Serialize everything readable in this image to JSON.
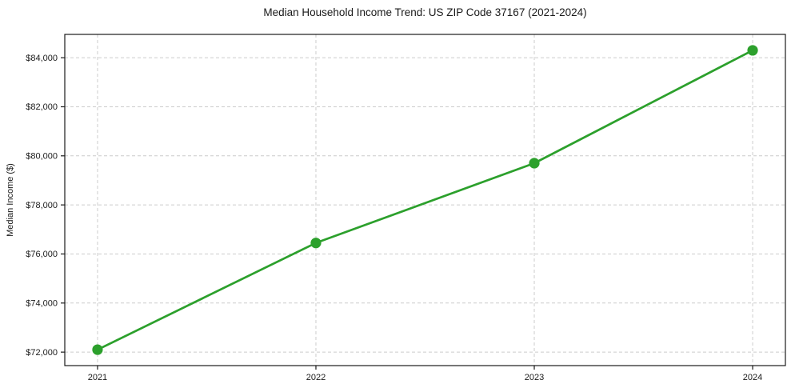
{
  "chart_data": {
    "type": "line",
    "title": "Median Household Income Trend: US ZIP Code 37167 (2021-2024)",
    "xlabel": "",
    "ylabel": "Median Income ($)",
    "categories": [
      "2021",
      "2022",
      "2023",
      "2024"
    ],
    "series": [
      {
        "name": "Median Household Income",
        "values": [
          72100,
          76450,
          79700,
          84300
        ]
      }
    ],
    "y_ticks": [
      72000,
      74000,
      76000,
      78000,
      80000,
      82000,
      84000
    ],
    "y_tick_labels": [
      "$72,000",
      "$74,000",
      "$76,000",
      "$78,000",
      "$80,000",
      "$82,000",
      "$84,000"
    ],
    "ylim": [
      71450,
      84950
    ],
    "grid": true,
    "legend_position": "none",
    "colors": {
      "line": "#2ca02c",
      "marker": "#2ca02c",
      "grid": "#cccccc",
      "axis": "#1a1a1a",
      "text": "#1a1a1a",
      "background": "#ffffff"
    }
  }
}
